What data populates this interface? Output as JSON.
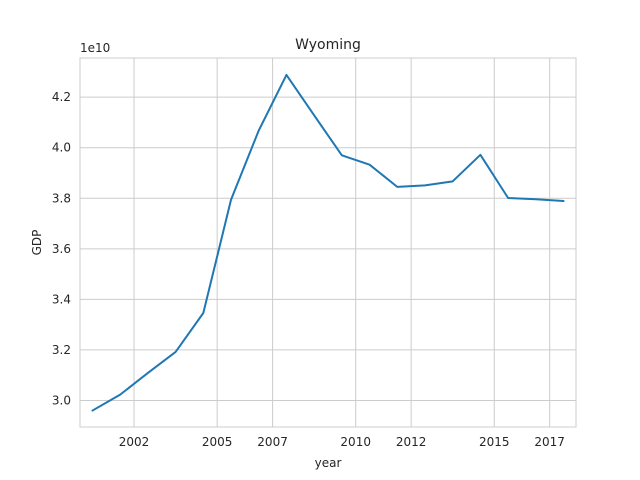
{
  "chart_data": {
    "type": "line",
    "title": "Wyoming",
    "xlabel": "year",
    "ylabel": "GDP",
    "y_offset_label": "1e10",
    "x": [
      2000.5,
      2001.5,
      2002.5,
      2003.5,
      2004.5,
      2005.5,
      2006.5,
      2007.5,
      2008.5,
      2009.5,
      2010.5,
      2011.5,
      2012.5,
      2013.5,
      2014.5,
      2015.5,
      2016.5,
      2017.5
    ],
    "series": [
      {
        "name": "",
        "color": "#1f77b4",
        "values": [
          2.96,
          3.023,
          3.109,
          3.192,
          3.346,
          3.794,
          4.068,
          4.288,
          4.128,
          3.97,
          3.933,
          3.845,
          3.851,
          3.867,
          3.972,
          3.801,
          3.796,
          3.789
        ]
      }
    ],
    "xticks": [
      2002,
      2005,
      2007,
      2010,
      2012,
      2015,
      2017
    ],
    "xtick_labels": [
      "2002",
      "2005",
      "2007",
      "2010",
      "2012",
      "2015",
      "2017"
    ],
    "yticks": [
      3.0,
      3.2,
      3.4,
      3.6,
      3.8,
      4.0,
      4.2
    ],
    "ytick_labels": [
      "3.0",
      "3.2",
      "3.4",
      "3.6",
      "3.8",
      "4.0",
      "4.2"
    ],
    "xlim": [
      2000.05,
      2017.95
    ],
    "ylim": [
      2.895,
      4.355
    ],
    "grid": true,
    "legend": "none"
  }
}
